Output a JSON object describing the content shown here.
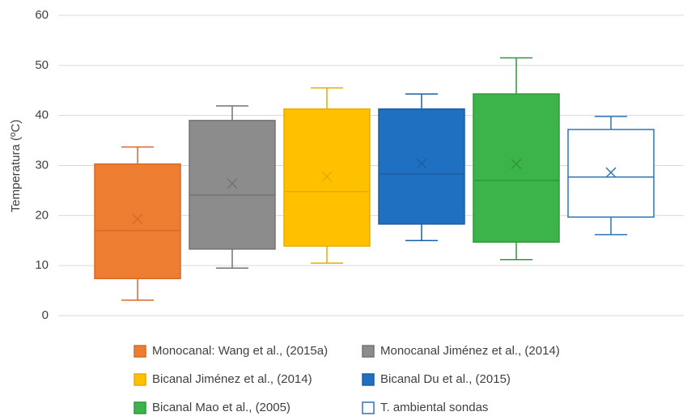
{
  "chart_data": {
    "type": "box",
    "y_label": "Temperatura (ºC)",
    "ylim": [
      0,
      60
    ],
    "yticks": [
      0,
      10,
      20,
      30,
      40,
      50,
      60
    ],
    "grid": true,
    "series": [
      {
        "name": "Monocanal: Wang et al., (2015a)",
        "color": "#ed7d31",
        "edge": "#d9692a",
        "min": 3.1,
        "q1": 7.4,
        "median": 17.0,
        "q3": 30.3,
        "max": 33.7,
        "mean": 19.3
      },
      {
        "name": "Monocanal Jiménez et al., (2014)",
        "color": "#8c8c8c",
        "edge": "#737373",
        "min": 9.5,
        "q1": 13.3,
        "median": 24.1,
        "q3": 39.0,
        "max": 41.9,
        "mean": 26.4
      },
      {
        "name": "Bicanal Jiménez et al., (2014)",
        "color": "#ffc000",
        "edge": "#e8ab00",
        "min": 10.5,
        "q1": 13.9,
        "median": 24.8,
        "q3": 41.3,
        "max": 45.5,
        "mean": 27.8
      },
      {
        "name": "Bicanal Du et al., (2015)",
        "color": "#1f70c1",
        "edge": "#1a5fa6",
        "min": 15.0,
        "q1": 18.3,
        "median": 28.3,
        "q3": 41.3,
        "max": 44.3,
        "mean": 30.4
      },
      {
        "name": "Bicanal Mao et al., (2005)",
        "color": "#3cb44a",
        "edge": "#30973d",
        "min": 11.2,
        "q1": 14.7,
        "median": 27.0,
        "q3": 44.3,
        "max": 51.5,
        "mean": 30.3
      },
      {
        "name": "T. ambiental sondas",
        "color": "#ffffff",
        "edge": "#2e75b6",
        "min": 16.2,
        "q1": 19.7,
        "median": 27.7,
        "q3": 37.2,
        "max": 39.8,
        "mean": 28.6
      }
    ]
  }
}
